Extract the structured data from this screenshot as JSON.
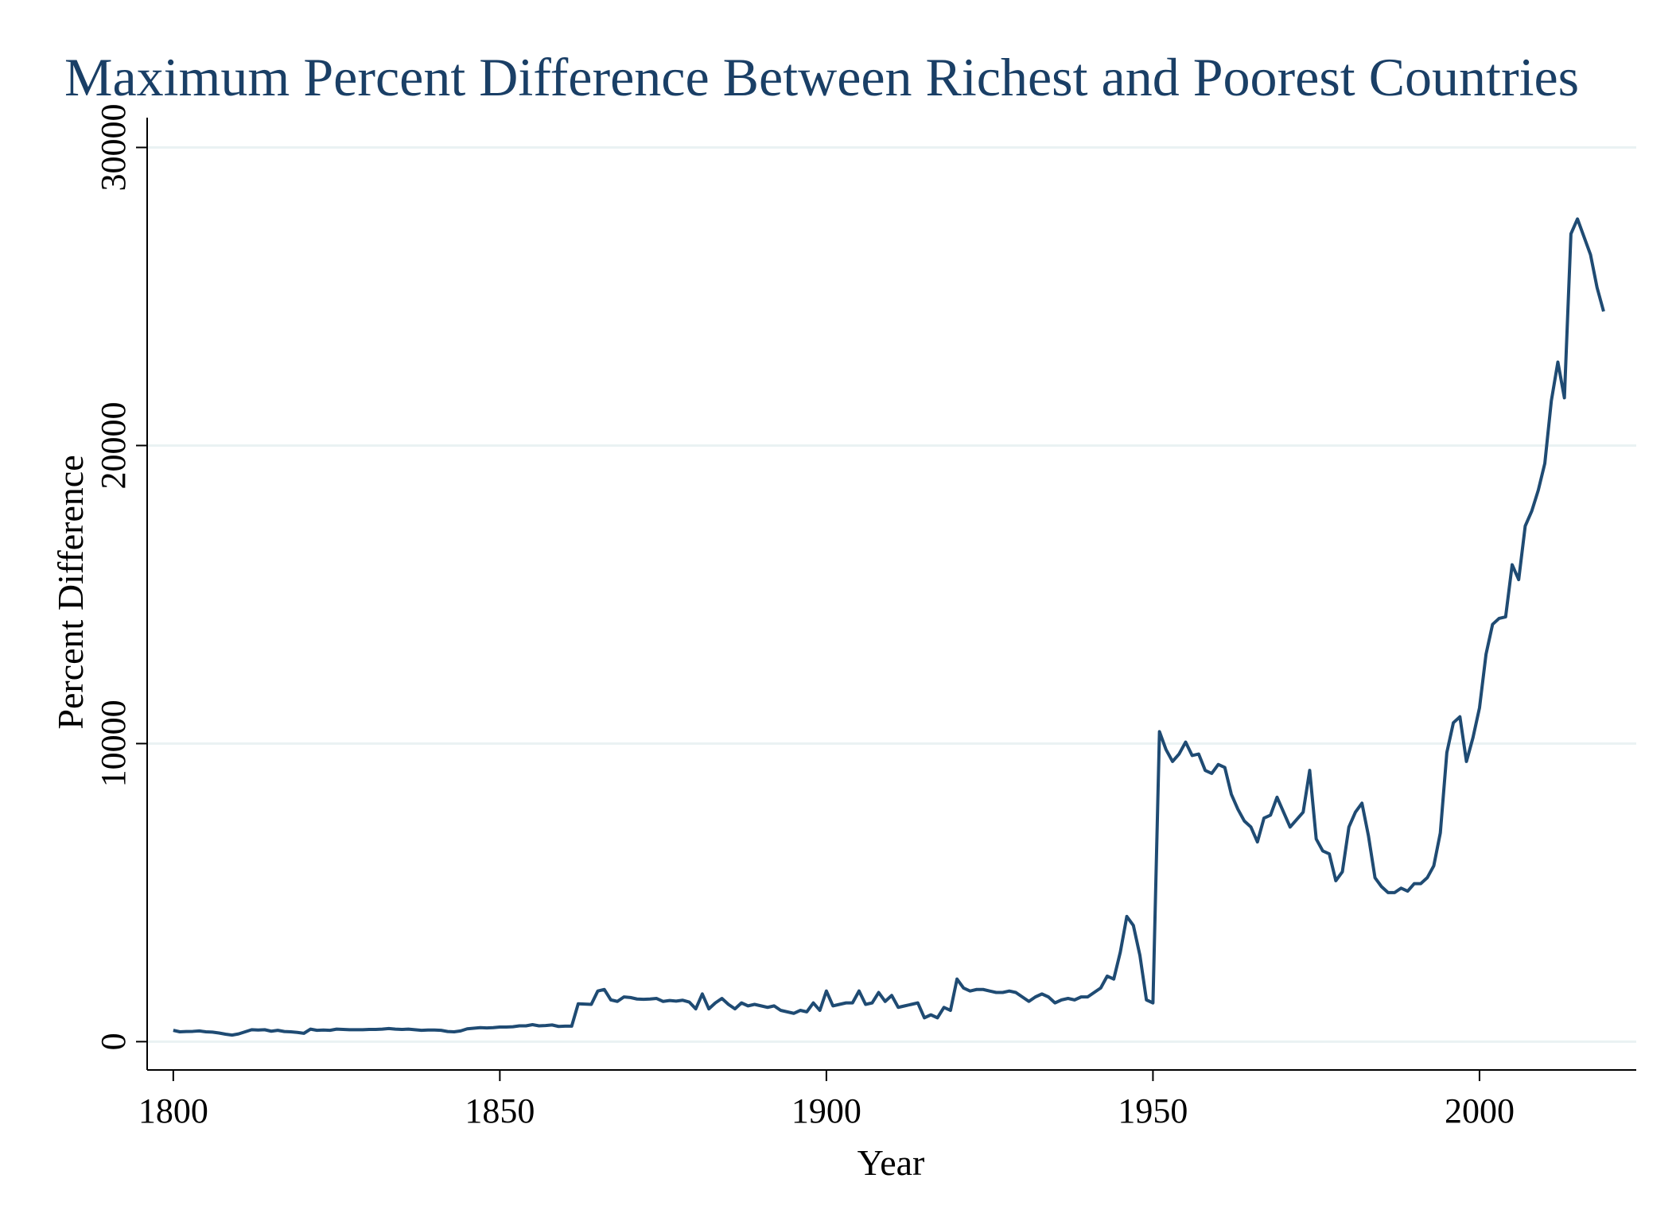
{
  "chart_data": {
    "type": "line",
    "title": "Maximum Percent Difference Between Richest and Poorest Countries",
    "xlabel": "Year",
    "ylabel": "Percent Difference",
    "color": "#1f4b73",
    "grid": true,
    "xlim": [
      1796,
      2024
    ],
    "ylim": [
      -950,
      31000
    ],
    "xticks": [
      1800,
      1850,
      1900,
      1950,
      2000
    ],
    "yticks": [
      0,
      10000,
      20000,
      30000
    ],
    "x": [
      1800,
      1801,
      1802,
      1803,
      1804,
      1805,
      1806,
      1807,
      1808,
      1809,
      1810,
      1811,
      1812,
      1813,
      1814,
      1815,
      1816,
      1817,
      1818,
      1819,
      1820,
      1821,
      1822,
      1823,
      1824,
      1825,
      1826,
      1827,
      1828,
      1829,
      1830,
      1831,
      1832,
      1833,
      1834,
      1835,
      1836,
      1837,
      1838,
      1839,
      1840,
      1841,
      1842,
      1843,
      1844,
      1845,
      1846,
      1847,
      1848,
      1849,
      1850,
      1851,
      1852,
      1853,
      1854,
      1855,
      1856,
      1857,
      1858,
      1859,
      1860,
      1861,
      1862,
      1863,
      1864,
      1865,
      1866,
      1867,
      1868,
      1869,
      1870,
      1871,
      1872,
      1873,
      1874,
      1875,
      1876,
      1877,
      1878,
      1879,
      1880,
      1881,
      1882,
      1883,
      1884,
      1885,
      1886,
      1887,
      1888,
      1889,
      1890,
      1891,
      1892,
      1893,
      1894,
      1895,
      1896,
      1897,
      1898,
      1899,
      1900,
      1901,
      1902,
      1903,
      1904,
      1905,
      1906,
      1907,
      1908,
      1909,
      1910,
      1911,
      1912,
      1913,
      1914,
      1915,
      1916,
      1917,
      1918,
      1919,
      1920,
      1921,
      1922,
      1923,
      1924,
      1925,
      1926,
      1927,
      1928,
      1929,
      1930,
      1931,
      1932,
      1933,
      1934,
      1935,
      1936,
      1937,
      1938,
      1939,
      1940,
      1941,
      1942,
      1943,
      1944,
      1945,
      1946,
      1947,
      1948,
      1949,
      1950,
      1951,
      1952,
      1953,
      1954,
      1955,
      1956,
      1957,
      1958,
      1959,
      1960,
      1961,
      1962,
      1963,
      1964,
      1965,
      1966,
      1967,
      1968,
      1969,
      1970,
      1971,
      1972,
      1973,
      1974,
      1975,
      1976,
      1977,
      1978,
      1979,
      1980,
      1981,
      1982,
      1983,
      1984,
      1985,
      1986,
      1987,
      1988,
      1989,
      1990,
      1991,
      1992,
      1993,
      1994,
      1995,
      1996,
      1997,
      1998,
      1999,
      2000,
      2001,
      2002,
      2003,
      2004,
      2005,
      2006,
      2007,
      2008,
      2009,
      2010,
      2011,
      2012,
      2013,
      2014,
      2015,
      2016,
      2017,
      2018,
      2019
    ],
    "values": [
      380,
      330,
      340,
      345,
      360,
      330,
      320,
      290,
      250,
      220,
      260,
      330,
      400,
      390,
      400,
      350,
      380,
      340,
      330,
      310,
      280,
      420,
      380,
      390,
      380,
      420,
      410,
      400,
      400,
      400,
      410,
      410,
      420,
      440,
      420,
      410,
      420,
      400,
      380,
      390,
      390,
      380,
      340,
      330,
      360,
      430,
      450,
      470,
      460,
      470,
      490,
      490,
      500,
      530,
      530,
      570,
      530,
      540,
      560,
      510,
      520,
      520,
      1270,
      1260,
      1250,
      1700,
      1750,
      1400,
      1350,
      1500,
      1480,
      1430,
      1420,
      1430,
      1450,
      1350,
      1380,
      1360,
      1390,
      1330,
      1100,
      1600,
      1100,
      1300,
      1450,
      1250,
      1100,
      1300,
      1200,
      1250,
      1200,
      1150,
      1200,
      1050,
      1000,
      950,
      1050,
      1000,
      1300,
      1050,
      1700,
      1200,
      1250,
      1300,
      1300,
      1700,
      1250,
      1300,
      1650,
      1350,
      1550,
      1150,
      1200,
      1250,
      1300,
      800,
      900,
      800,
      1150,
      1050,
      2100,
      1800,
      1700,
      1750,
      1750,
      1700,
      1650,
      1650,
      1700,
      1650,
      1500,
      1350,
      1500,
      1600,
      1500,
      1300,
      1400,
      1450,
      1400,
      1500,
      1500,
      1650,
      1800,
      2200,
      2100,
      3000,
      4200,
      3900,
      2900,
      1400,
      1300,
      10400,
      9800,
      9400,
      9650,
      10050,
      9600,
      9650,
      9100,
      9000,
      9300,
      9200,
      8300,
      7800,
      7400,
      7200,
      6700,
      7500,
      7600,
      8200,
      7700,
      7200,
      7450,
      7700,
      9100,
      6800,
      6400,
      6300,
      5400,
      5700,
      7200,
      7700,
      8000,
      6900,
      5500,
      5200,
      5000,
      5000,
      5150,
      5050,
      5300,
      5300,
      5500,
      5900,
      7000,
      9700,
      10700,
      10900,
      9400,
      10200,
      11200,
      13000,
      14000,
      14200,
      14250,
      16000,
      15500,
      17300,
      17800,
      18500,
      19400,
      21500,
      22800,
      21600,
      27100,
      27600,
      27000,
      26400,
      25300,
      24500
    ]
  }
}
